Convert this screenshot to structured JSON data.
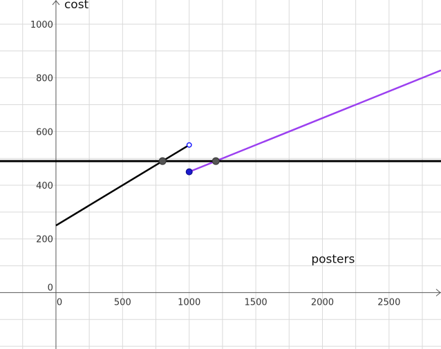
{
  "chart_data": {
    "type": "line",
    "xlabel": "posters",
    "ylabel": "cost",
    "xlim": [
      -420,
      2890
    ],
    "ylim": [
      -210,
      1090
    ],
    "grid": true,
    "x_ticks": [
      0,
      500,
      1000,
      1500,
      2000,
      2500
    ],
    "x_tick_labels": [
      "0",
      "500",
      "1000",
      "1500",
      "2000",
      "2500"
    ],
    "y_ticks": [
      0,
      200,
      400,
      600,
      800,
      1000
    ],
    "y_tick_labels": [
      "0",
      "200",
      "400",
      "600",
      "800",
      "1000"
    ],
    "x_minor_step": 250,
    "y_minor_step": 100,
    "series": [
      {
        "color": "#000000",
        "points": [
          [
            0,
            250
          ],
          [
            1000,
            550
          ]
        ],
        "end_open": true
      },
      {
        "color": "#9b3ff0",
        "points": [
          [
            1000,
            450
          ],
          [
            2890,
            828
          ]
        ],
        "start_closed": true
      },
      {
        "color": "#000000",
        "points": [
          [
            -420,
            490
          ],
          [
            2890,
            490
          ]
        ]
      }
    ],
    "marked_points": [
      {
        "x": 800,
        "y": 490,
        "color": "#555555"
      },
      {
        "x": 1200,
        "y": 490,
        "color": "#555555"
      }
    ],
    "endpoint_colors": {
      "open": "#1a1aff",
      "closed": "#1a1acc"
    }
  }
}
